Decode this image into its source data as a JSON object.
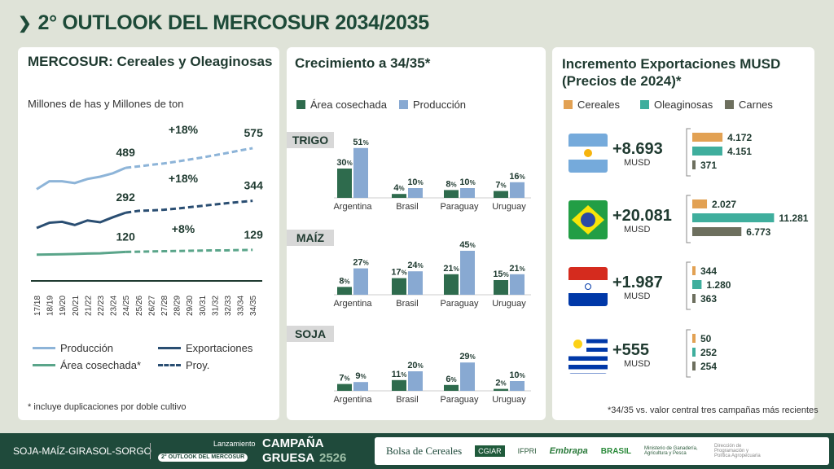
{
  "title": "2° OUTLOOK DEL MERCOSUR 2034/2035",
  "left": {
    "title": "MERCOSUR: Cereales y Oleaginosas",
    "subtitle": "Millones de has y Millones de ton",
    "footnote": "* incluye duplicaciones por doble cultivo",
    "legend": {
      "produccion": "Producción",
      "exportaciones": "Exportaciones",
      "area": "Área cosechada*",
      "proy": "Proy."
    }
  },
  "chart_data": [
    {
      "type": "line",
      "title": "MERCOSUR: Cereales y Oleaginosas",
      "ylabel": "Millones de has y Millones de ton",
      "ylim": [
        0,
        600
      ],
      "x": [
        "17/18",
        "18/19",
        "19/20",
        "20/21",
        "21/22",
        "22/23",
        "23/24",
        "24/25",
        "25/26",
        "26/27",
        "27/28",
        "28/29",
        "29/30",
        "30/31",
        "31/32",
        "32/33",
        "33/34",
        "34/35"
      ],
      "projection_start": "24/25",
      "series": [
        {
          "name": "Producción",
          "color": "#8db4d8",
          "values": [
            395,
            430,
            430,
            422,
            440,
            450,
            465,
            489,
            495,
            502,
            508,
            516,
            525,
            534,
            544,
            554,
            565,
            575
          ],
          "labels": {
            "24/25": "489",
            "34/35": "575"
          },
          "change": "+18%"
        },
        {
          "name": "Exportaciones",
          "color": "#2a4e72",
          "values": [
            225,
            248,
            252,
            238,
            258,
            250,
            272,
            292,
            300,
            302,
            305,
            310,
            316,
            322,
            328,
            334,
            339,
            344
          ],
          "labels": {
            "24/25": "292",
            "34/35": "344"
          },
          "change": "+18%"
        },
        {
          "name": "Área cosechada*",
          "color": "#5aa58a",
          "values": [
            108,
            109,
            110,
            111,
            113,
            114,
            117,
            120,
            121,
            122,
            123,
            124,
            125,
            126,
            127,
            127,
            128,
            129
          ],
          "labels": {
            "24/25": "120",
            "34/35": "129"
          },
          "change": "+8%"
        }
      ]
    },
    {
      "type": "bar",
      "title": "Crecimiento a 34/35*",
      "categories": [
        "Argentina",
        "Brasil",
        "Paraguay",
        "Uruguay"
      ],
      "legend": {
        "area": "Área cosechada",
        "produccion": "Producción"
      },
      "colors": {
        "area": "#2e6b4d",
        "produccion": "#88a9d2"
      },
      "groups": [
        {
          "name": "TRIGO",
          "area": [
            30,
            4,
            8,
            7
          ],
          "produccion": [
            51,
            10,
            10,
            16
          ]
        },
        {
          "name": "MAÍZ",
          "area": [
            8,
            17,
            21,
            15
          ],
          "produccion": [
            27,
            24,
            45,
            21
          ]
        },
        {
          "name": "SOJA",
          "area": [
            7,
            11,
            6,
            2
          ],
          "produccion": [
            9,
            20,
            29,
            10
          ]
        }
      ]
    },
    {
      "type": "bar",
      "orientation": "horizontal",
      "title": "Incremento Exportaciones MUSD (Precios de 2024)*",
      "legend": [
        "Cereales",
        "Oleaginosas",
        "Carnes"
      ],
      "colors": [
        "#e2a153",
        "#3fae9d",
        "#6d6f5e"
      ],
      "rows": [
        {
          "country": "Argentina",
          "total": "+8.693",
          "unit": "MUSD",
          "values": [
            4172,
            4151,
            371
          ],
          "labels": [
            "4.172",
            "4.151",
            "371"
          ]
        },
        {
          "country": "Brasil",
          "total": "+20.081",
          "unit": "MUSD",
          "values": [
            2027,
            11281,
            6773
          ],
          "labels": [
            "2.027",
            "11.281",
            "6.773"
          ]
        },
        {
          "country": "Paraguay",
          "total": "+1.987",
          "unit": "MUSD",
          "values": [
            344,
            1280,
            363
          ],
          "labels": [
            "344",
            "1.280",
            "363"
          ]
        },
        {
          "country": "Uruguay",
          "total": "+555",
          "unit": "MUSD",
          "values": [
            50,
            252,
            254
          ],
          "labels": [
            "50",
            "252",
            "254"
          ]
        }
      ],
      "footnote": "*34/35 vs. valor central tres campañas más recientes"
    }
  ],
  "right": {
    "title1": "Incremento Exportaciones MUSD",
    "title2": "(Precios de 2024)*"
  },
  "mid": {
    "title": "Crecimiento a 34/35*"
  },
  "footer": {
    "crops": "SOJA-MAÍZ-GIRASOL-SORGO",
    "lanz": "Lanzamiento",
    "campana": "CAMPAÑA",
    "outlook": "2° OUTLOOK DEL MERCOSUR",
    "gruesa": "GRUESA",
    "year": "2526",
    "logos": [
      "Bolsa de Cereales",
      "CGIAR",
      "IFPRI",
      "Embrapa",
      "BRASIL",
      "Ministerio de Ganadería, Agricultura y Pesca",
      "Dirección de Programación y Política Agropecuaria"
    ]
  }
}
